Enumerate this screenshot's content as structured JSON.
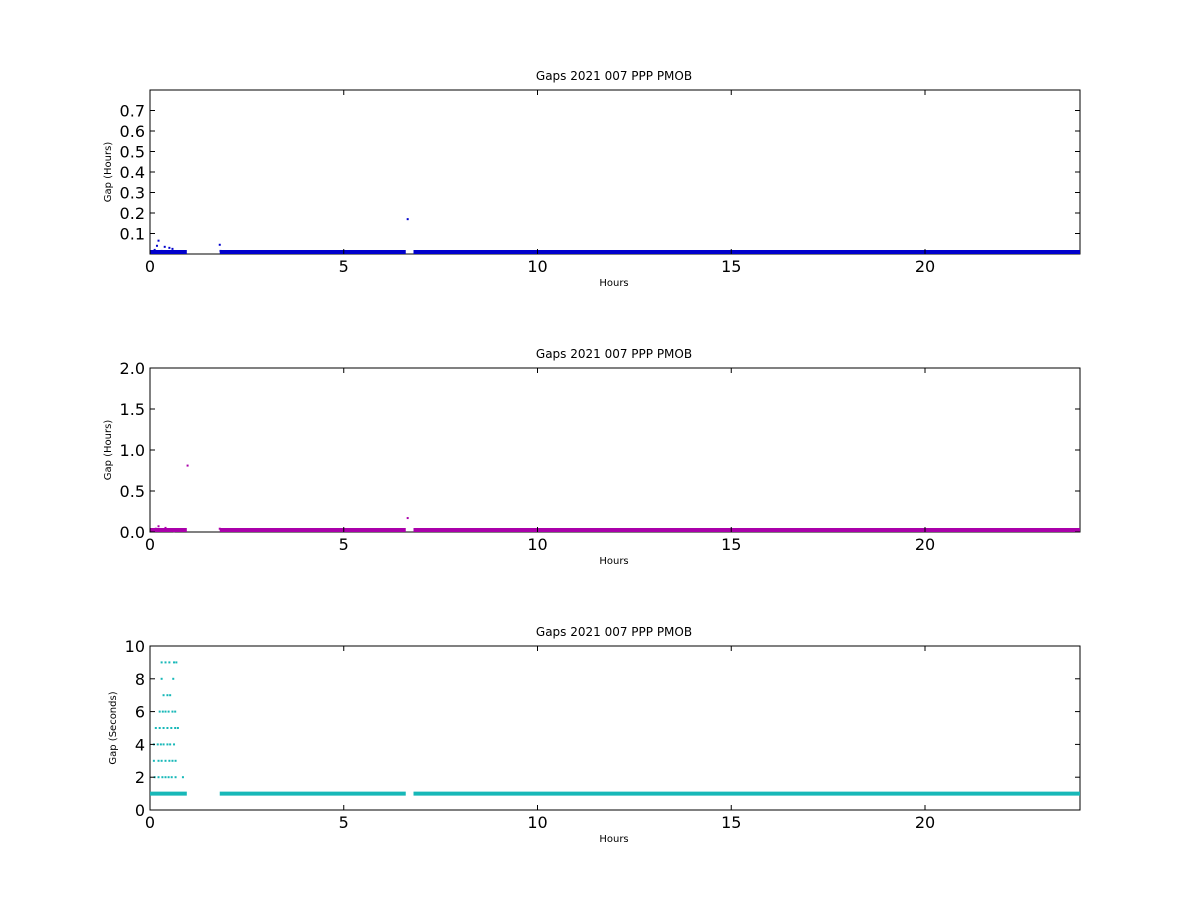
{
  "chart_data": [
    {
      "type": "scatter",
      "title": "Gaps 2021 007 PPP  PMOB",
      "xlabel": "Hours",
      "ylabel": "Gap (Hours)",
      "xlim": [
        0,
        24
      ],
      "ylim": [
        0,
        0.8
      ],
      "xticks": [
        "0",
        "5",
        "10",
        "15",
        "20"
      ],
      "yticks": [
        "0.1",
        "0.2",
        "0.3",
        "0.4",
        "0.5",
        "0.6",
        "0.7"
      ],
      "color": "#0000cc",
      "grid": false,
      "series": [
        {
          "points": [
            [
              0.05,
              0.01
            ],
            [
              0.12,
              0.02
            ],
            [
              0.18,
              0.04
            ],
            [
              0.22,
              0.065
            ],
            [
              0.3,
              0.015
            ],
            [
              0.38,
              0.035
            ],
            [
              0.45,
              0.01
            ],
            [
              0.5,
              0.03
            ],
            [
              0.58,
              0.025
            ],
            [
              0.65,
              0.01
            ],
            [
              0.72,
              0.005
            ],
            [
              0.8,
              0.008
            ],
            [
              1.8,
              0.045
            ],
            [
              1.82,
              0.015
            ],
            [
              6.65,
              0.17
            ]
          ],
          "bands": [
            {
              "x": [
                0.0,
                0.95
              ],
              "y": 0.003
            },
            {
              "x": [
                1.8,
                6.6
              ],
              "y": 0.003
            },
            {
              "x": [
                6.8,
                24.0
              ],
              "y": 0.003
            }
          ]
        }
      ]
    },
    {
      "type": "scatter",
      "title": "Gaps 2021 007 PPP  PMOB",
      "xlabel": "Hours",
      "ylabel": "Gap (Hours)",
      "xlim": [
        0,
        24
      ],
      "ylim": [
        0,
        2.0
      ],
      "xticks": [
        "0",
        "5",
        "10",
        "15",
        "20"
      ],
      "yticks": [
        "0.0",
        "0.5",
        "1.0",
        "1.5",
        "2.0"
      ],
      "color": "#aa00aa",
      "grid": false,
      "series": [
        {
          "points": [
            [
              0.05,
              0.02
            ],
            [
              0.15,
              0.04
            ],
            [
              0.22,
              0.07
            ],
            [
              0.3,
              0.03
            ],
            [
              0.4,
              0.05
            ],
            [
              0.5,
              0.02
            ],
            [
              0.62,
              0.01
            ],
            [
              0.97,
              0.81
            ],
            [
              1.8,
              0.04
            ],
            [
              6.65,
              0.17
            ]
          ],
          "bands": [
            {
              "x": [
                0.0,
                0.95
              ],
              "y": 0.005
            },
            {
              "x": [
                1.8,
                6.6
              ],
              "y": 0.005
            },
            {
              "x": [
                6.8,
                24.0
              ],
              "y": 0.005
            }
          ]
        }
      ]
    },
    {
      "type": "scatter",
      "title": "Gaps 2021 007 PPP  PMOB",
      "xlabel": "Hours",
      "ylabel": "Gap (Seconds)",
      "xlim": [
        0,
        24
      ],
      "ylim": [
        0,
        10
      ],
      "xticks": [
        "0",
        "5",
        "10",
        "15",
        "20"
      ],
      "yticks": [
        "0",
        "2",
        "4",
        "6",
        "8",
        "10"
      ],
      "color": "#17b8b8",
      "grid": false,
      "series": [
        {
          "points": [
            [
              0.3,
              9
            ],
            [
              0.4,
              9
            ],
            [
              0.5,
              9
            ],
            [
              0.62,
              9
            ],
            [
              0.68,
              9
            ],
            [
              0.3,
              8
            ],
            [
              0.6,
              8
            ],
            [
              0.35,
              7
            ],
            [
              0.45,
              7
            ],
            [
              0.52,
              7
            ],
            [
              0.25,
              6
            ],
            [
              0.33,
              6
            ],
            [
              0.4,
              6
            ],
            [
              0.48,
              6
            ],
            [
              0.58,
              6
            ],
            [
              0.65,
              6
            ],
            [
              0.15,
              5
            ],
            [
              0.25,
              5
            ],
            [
              0.35,
              5
            ],
            [
              0.45,
              5
            ],
            [
              0.55,
              5
            ],
            [
              0.65,
              5
            ],
            [
              0.72,
              5
            ],
            [
              0.1,
              4
            ],
            [
              0.2,
              4
            ],
            [
              0.28,
              4
            ],
            [
              0.35,
              4
            ],
            [
              0.45,
              4
            ],
            [
              0.52,
              4
            ],
            [
              0.62,
              4
            ],
            [
              0.1,
              3
            ],
            [
              0.22,
              3
            ],
            [
              0.3,
              3
            ],
            [
              0.4,
              3
            ],
            [
              0.5,
              3
            ],
            [
              0.58,
              3
            ],
            [
              0.66,
              3
            ],
            [
              0.12,
              2
            ],
            [
              0.22,
              2
            ],
            [
              0.32,
              2
            ],
            [
              0.4,
              2
            ],
            [
              0.48,
              2
            ],
            [
              0.56,
              2
            ],
            [
              0.66,
              2
            ],
            [
              0.85,
              2
            ]
          ],
          "bands": [
            {
              "x": [
                0.0,
                0.95
              ],
              "y": 1
            },
            {
              "x": [
                1.8,
                6.6
              ],
              "y": 1
            },
            {
              "x": [
                6.8,
                24.0
              ],
              "y": 1
            }
          ]
        }
      ]
    }
  ]
}
